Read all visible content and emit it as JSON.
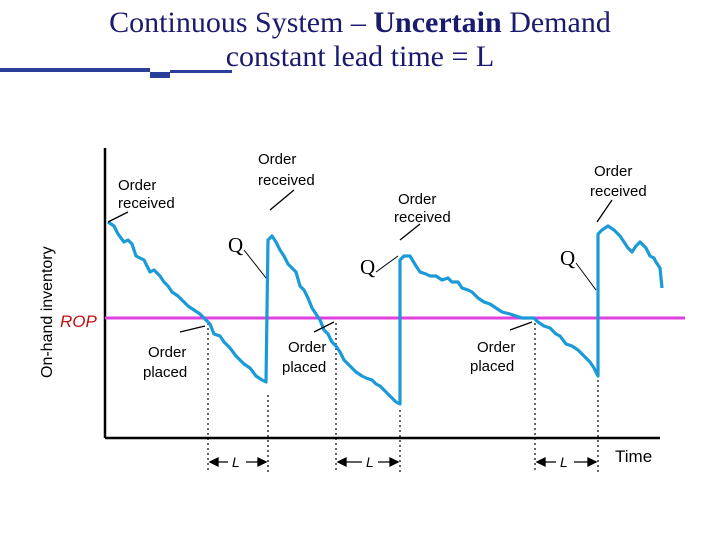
{
  "title": {
    "line1_prefix": "Continuous System – ",
    "line1_bold": "Uncertain",
    "line1_suffix": " Demand",
    "line2": "constant lead time = L"
  },
  "diagram": {
    "y_axis_label": "On-hand inventory",
    "x_axis_label": "Time",
    "rop_label": "ROP",
    "order_quantity_label": "Q",
    "lead_time_label": "L",
    "order_received_line1": "Order",
    "order_received_line2": "received",
    "order_placed_line1": "Order",
    "order_placed_line2": "placed"
  },
  "colors": {
    "title": "#1a1a6e",
    "rop_line": "#e040e0",
    "rop_label": "#c01010",
    "inventory_line": "#1a9ad6",
    "decor_blue": "#2b3f9a"
  }
}
